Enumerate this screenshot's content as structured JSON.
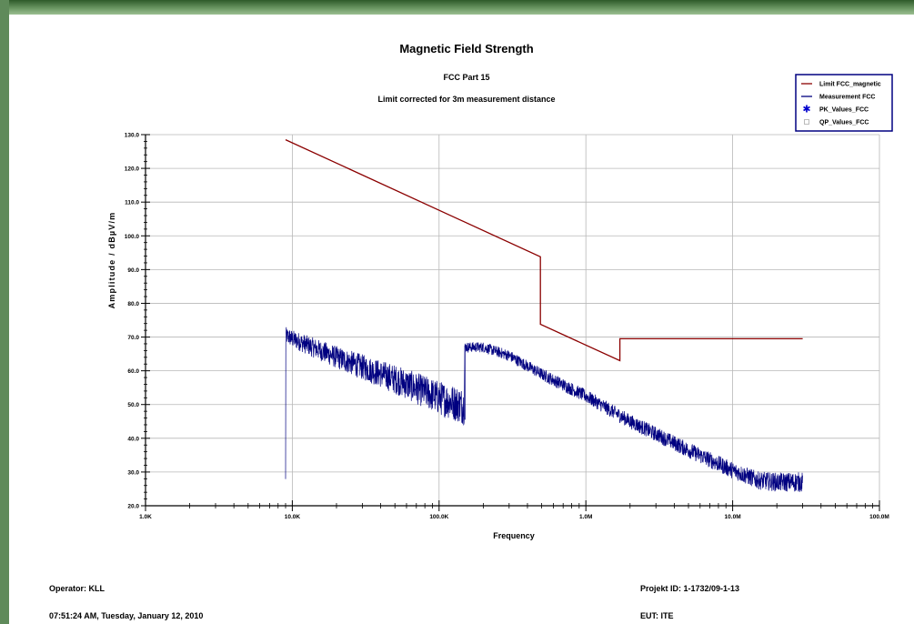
{
  "chart_data": {
    "type": "line",
    "title": "Magnetic Field Strength",
    "subtitle": "FCC Part 15",
    "subtitle2": "Limit corrected for 3m measurement distance",
    "xlabel": "Frequency",
    "ylabel": "Amplitude / dBµV/m",
    "x_scale": "log",
    "xlim": [
      1000,
      100000000
    ],
    "ylim": [
      20,
      130
    ],
    "grid": true,
    "legend_position": "top-right",
    "x_ticks": [
      {
        "value": 1000,
        "label": "1.0K"
      },
      {
        "value": 10000,
        "label": "10.0K"
      },
      {
        "value": 100000,
        "label": "100.0K"
      },
      {
        "value": 1000000,
        "label": "1.0M"
      },
      {
        "value": 10000000,
        "label": "10.0M"
      },
      {
        "value": 100000000,
        "label": "100.0M"
      }
    ],
    "y_ticks": [
      {
        "value": 20,
        "label": "20.0"
      },
      {
        "value": 30,
        "label": "30.0"
      },
      {
        "value": 40,
        "label": "40.0"
      },
      {
        "value": 50,
        "label": "50.0"
      },
      {
        "value": 60,
        "label": "60.0"
      },
      {
        "value": 70,
        "label": "70.0"
      },
      {
        "value": 80,
        "label": "80.0"
      },
      {
        "value": 90,
        "label": "90.0"
      },
      {
        "value": 100,
        "label": "100.0"
      },
      {
        "value": 110,
        "label": "110.0"
      },
      {
        "value": 120,
        "label": "120.0"
      },
      {
        "value": 130,
        "label": "130.0"
      }
    ],
    "series": [
      {
        "name": "Limit FCC_magnetic",
        "color": "#8b0000",
        "style": "line",
        "points": [
          [
            9000,
            128.5
          ],
          [
            490000,
            93.8
          ],
          [
            490000,
            73.8
          ],
          [
            1705000,
            63.0
          ],
          [
            1705000,
            69.5
          ],
          [
            30000000,
            69.5
          ]
        ]
      },
      {
        "name": "Measurement FCC",
        "color": "#000080",
        "style": "noisy-line",
        "points": [
          [
            9000,
            70.5
          ],
          [
            10000,
            69.5
          ],
          [
            20000,
            64.0
          ],
          [
            50000,
            57.5
          ],
          [
            100000,
            52.0
          ],
          [
            148000,
            49.5
          ],
          [
            150000,
            67.0
          ],
          [
            200000,
            67.0
          ],
          [
            300000,
            64.5
          ],
          [
            500000,
            59.0
          ],
          [
            1000000,
            52.5
          ],
          [
            2000000,
            45.0
          ],
          [
            5000000,
            36.5
          ],
          [
            10000000,
            30.5
          ],
          [
            15000000,
            27.5
          ],
          [
            20000000,
            27.0
          ],
          [
            30000000,
            27.0
          ]
        ],
        "noise_band": [
          [
            9000,
            2.5
          ],
          [
            148000,
            5.5
          ],
          [
            150000,
            1.5
          ],
          [
            1000000,
            2.0
          ],
          [
            10000000,
            2.5
          ],
          [
            30000000,
            3.0
          ]
        ]
      },
      {
        "name": "PK_Values_FCC",
        "color": "#0000cd",
        "style": "marker-asterisk",
        "points": []
      },
      {
        "name": "QP_Values_FCC",
        "color": "#aaaaaa",
        "style": "marker-square",
        "points": []
      }
    ]
  },
  "footer": {
    "operator": "Operator: KLL",
    "timestamp": "07:51:24 AM, Tuesday, January 12, 2010",
    "project_id": "Projekt ID: 1-1732/09-1-13",
    "eut": "EUT: ITE"
  }
}
